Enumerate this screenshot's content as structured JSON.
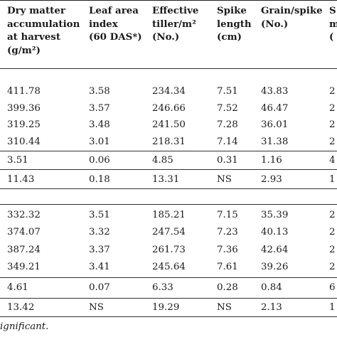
{
  "headers": [
    [
      "Dry matter",
      "accumulation",
      "at harvest",
      " (g/m²)"
    ],
    [
      "Leaf area",
      "index",
      "(60 DAS*)"
    ],
    [
      "Effective",
      "tiller/m²",
      "(No.)"
    ],
    [
      "Spike",
      "length",
      "(cm)"
    ],
    [
      "Grain/spike",
      "(No.)"
    ],
    [
      "S",
      "m",
      "("
    ]
  ],
  "groups": [
    {
      "rows": [
        [
          "411.78",
          "3.58",
          "234.34",
          "7.51",
          "43.83",
          "2"
        ],
        [
          "399.36",
          "3.57",
          "246.66",
          "7.52",
          "46.47",
          "2"
        ],
        [
          "319.25",
          "3.48",
          "241.50",
          "7.28",
          "36.01",
          "2"
        ],
        [
          "310.44",
          "3.01",
          "218.31",
          "7.14",
          "31.38",
          "2"
        ]
      ],
      "sem": [
        "3.51",
        "0.06",
        "4.85",
        "0.31",
        "1.16",
        "4"
      ],
      "cd": [
        "11.43",
        "0.18",
        "13.31",
        "NS",
        "2.93",
        "1"
      ]
    },
    {
      "rows": [
        [
          "332.32",
          "3.51",
          "185.21",
          "7.15",
          "35.39",
          "2"
        ],
        [
          "374.07",
          "3.32",
          "247.54",
          "7.23",
          "40.13",
          "2"
        ],
        [
          "387.24",
          "3.37",
          "261.73",
          "7.36",
          "42.64",
          "2"
        ],
        [
          "349.21",
          "3.41",
          "245.64",
          "7.61",
          "39.26",
          "2"
        ]
      ],
      "sem": [
        "4.61",
        "0.07",
        "6.33",
        "0.28",
        "0.84",
        "6"
      ],
      "cd": [
        "13.42",
        "NS",
        "19.29",
        "NS",
        "2.13",
        "1"
      ]
    }
  ],
  "footnote": "ignificant."
}
